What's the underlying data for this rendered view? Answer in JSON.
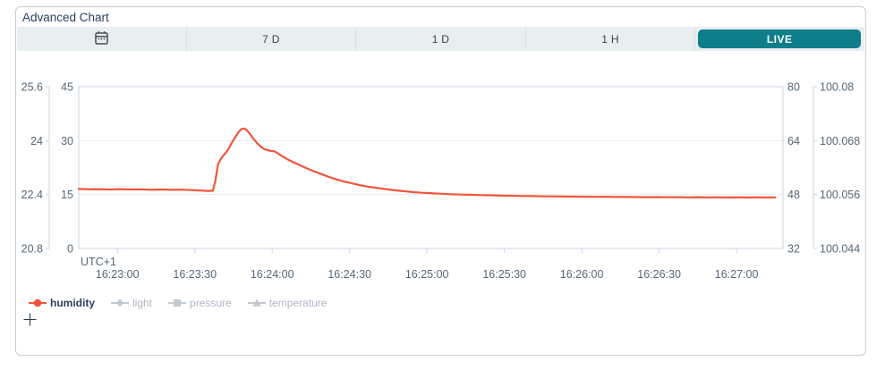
{
  "card": {
    "title": "Advanced Chart"
  },
  "toolbar": {
    "calendar_button": {
      "icon": "calendar-icon"
    },
    "range_buttons": [
      {
        "label": "7 D"
      },
      {
        "label": "1 D"
      },
      {
        "label": "1 H"
      }
    ],
    "live_button": {
      "label": "LIVE",
      "active": true,
      "bg": "#0d7e8a"
    }
  },
  "chart_data": {
    "type": "line",
    "title": "Advanced Chart",
    "x_annotation": "UTC+1",
    "time_domain_seconds": [
      0,
      273
    ],
    "time_domain_clock": [
      "16:22:45",
      "16:27:18"
    ],
    "value_domain": [
      0,
      45
    ],
    "grid_values": [
      15,
      30
    ],
    "x_ticks": [
      {
        "t": 15,
        "label": "16:23:00"
      },
      {
        "t": 45,
        "label": "16:23:30"
      },
      {
        "t": 75,
        "label": "16:24:00"
      },
      {
        "t": 105,
        "label": "16:24:30"
      },
      {
        "t": 135,
        "label": "16:25:00"
      },
      {
        "t": 165,
        "label": "16:25:30"
      },
      {
        "t": 195,
        "label": "16:26:00"
      },
      {
        "t": 225,
        "label": "16:26:30"
      },
      {
        "t": 255,
        "label": "16:27:00"
      }
    ],
    "axes": {
      "left_outer": {
        "name": "temperature-axis",
        "ticks": [
          "25.6",
          "24",
          "22.4",
          "20.8"
        ]
      },
      "left_inner": {
        "name": "light-axis",
        "ticks": [
          "45",
          "30",
          "15",
          "0"
        ]
      },
      "right_inner": {
        "name": "humidity-axis",
        "ticks": [
          "80",
          "64",
          "48",
          "32"
        ]
      },
      "right_outer": {
        "name": "pressure-axis",
        "ticks": [
          "100.08",
          "100.068",
          "100.056",
          "100.044"
        ]
      }
    },
    "series": [
      {
        "name": "humidity",
        "color": "#ef553b",
        "points": [
          [
            0,
            16.55
          ],
          [
            4,
            16.45
          ],
          [
            8,
            16.5
          ],
          [
            12,
            16.4
          ],
          [
            16,
            16.5
          ],
          [
            20,
            16.4
          ],
          [
            24,
            16.45
          ],
          [
            28,
            16.3
          ],
          [
            32,
            16.4
          ],
          [
            36,
            16.3
          ],
          [
            40,
            16.35
          ],
          [
            44,
            16.2
          ],
          [
            47,
            16.1
          ],
          [
            50,
            16.0
          ],
          [
            52,
            16.05
          ],
          [
            53,
            19.0
          ],
          [
            54,
            23.5
          ],
          [
            55,
            24.8
          ],
          [
            56,
            25.8
          ],
          [
            57,
            26.6
          ],
          [
            58,
            27.6
          ],
          [
            59,
            29.0
          ],
          [
            60,
            30.2
          ],
          [
            61,
            31.3
          ],
          [
            62,
            32.4
          ],
          [
            63,
            33.2
          ],
          [
            64,
            33.4
          ],
          [
            65,
            33.0
          ],
          [
            66,
            32.2
          ],
          [
            67,
            31.2
          ],
          [
            68,
            30.3
          ],
          [
            69,
            29.4
          ],
          [
            70,
            28.7
          ],
          [
            71,
            28.1
          ],
          [
            72,
            27.6
          ],
          [
            74,
            27.2
          ],
          [
            76,
            27.0
          ],
          [
            79,
            25.6
          ],
          [
            82,
            24.4
          ],
          [
            85,
            23.4
          ],
          [
            88,
            22.4
          ],
          [
            91,
            21.5
          ],
          [
            94,
            20.7
          ],
          [
            97,
            19.9
          ],
          [
            100,
            19.2
          ],
          [
            103,
            18.6
          ],
          [
            106,
            18.1
          ],
          [
            109,
            17.6
          ],
          [
            112,
            17.2
          ],
          [
            115,
            16.9
          ],
          [
            118,
            16.6
          ],
          [
            121,
            16.3
          ],
          [
            124,
            16.05
          ],
          [
            127,
            15.85
          ],
          [
            130,
            15.65
          ],
          [
            133,
            15.5
          ],
          [
            136,
            15.4
          ],
          [
            140,
            15.25
          ],
          [
            144,
            15.1
          ],
          [
            148,
            15.0
          ],
          [
            152,
            14.95
          ],
          [
            156,
            14.85
          ],
          [
            160,
            14.8
          ],
          [
            164,
            14.7
          ],
          [
            168,
            14.68
          ],
          [
            172,
            14.6
          ],
          [
            176,
            14.58
          ],
          [
            180,
            14.5
          ],
          [
            184,
            14.5
          ],
          [
            188,
            14.45
          ],
          [
            192,
            14.42
          ],
          [
            196,
            14.4
          ],
          [
            200,
            14.38
          ],
          [
            204,
            14.4
          ],
          [
            208,
            14.32
          ],
          [
            212,
            14.33
          ],
          [
            216,
            14.3
          ],
          [
            220,
            14.28
          ],
          [
            224,
            14.3
          ],
          [
            228,
            14.25
          ],
          [
            232,
            14.28
          ],
          [
            236,
            14.22
          ],
          [
            240,
            14.28
          ],
          [
            244,
            14.22
          ],
          [
            248,
            14.25
          ],
          [
            252,
            14.2
          ],
          [
            256,
            14.22
          ],
          [
            260,
            14.18
          ],
          [
            264,
            14.22
          ],
          [
            267,
            14.18
          ],
          [
            270,
            14.2
          ]
        ]
      }
    ],
    "legend": [
      {
        "label": "humidity",
        "marker": "circle",
        "color": "#ef553b",
        "text_color": "#2a3f5f",
        "active": true
      },
      {
        "label": "light",
        "marker": "diamond",
        "color": "#c3c9d1",
        "text_color": "#aeb6c2",
        "active": false
      },
      {
        "label": "pressure",
        "marker": "square",
        "color": "#c3c9d1",
        "text_color": "#aeb6c2",
        "active": false
      },
      {
        "label": "temperature",
        "marker": "triangle",
        "color": "#c3c9d1",
        "text_color": "#aeb6c2",
        "active": false
      }
    ]
  },
  "colors": {
    "axis_line": "#c8d4e3",
    "grid": "#eaedf1",
    "tick_text": "#566777",
    "title_text": "#2a3f5f",
    "toolbar_bg": "#e9eef1",
    "toolbar_divider": "#d9dfe2",
    "toolbar_text": "#3b4550",
    "card_border": "#c6d0d0"
  }
}
